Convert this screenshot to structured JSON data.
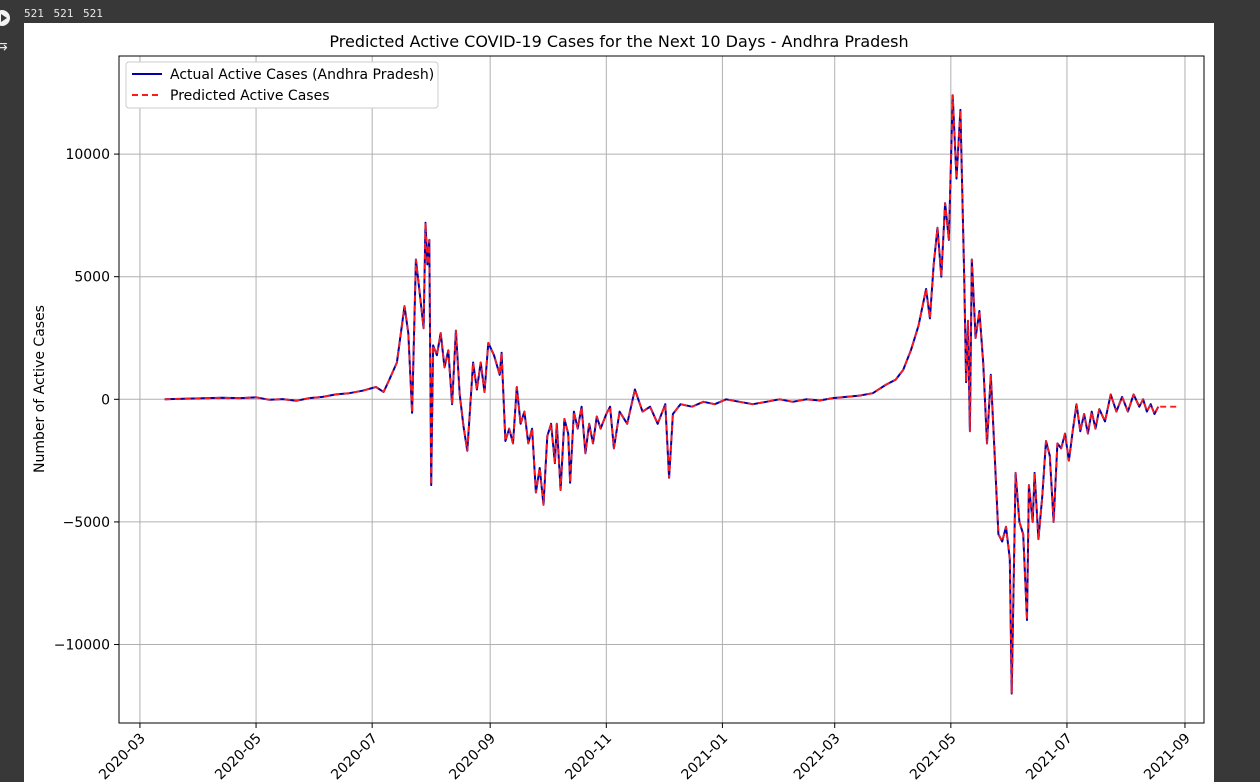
{
  "cell_output_header": "521 521 521",
  "icons": {
    "run": "run-cell-icon",
    "output": "output-toggle-icon"
  },
  "chart_data": {
    "type": "line",
    "title": "Predicted Active COVID-19 Cases for the Next 10 Days - Andhra Pradesh",
    "xlabel": "",
    "ylabel": "Number of Active Cases",
    "xlim": [
      "2020-02-19",
      "2021-09-11"
    ],
    "ylim": [
      -13200,
      14000
    ],
    "x_ticks": [
      "2020-03",
      "2020-05",
      "2020-07",
      "2020-09",
      "2020-11",
      "2021-01",
      "2021-03",
      "2021-05",
      "2021-07",
      "2021-09"
    ],
    "y_ticks": [
      10000,
      5000,
      0,
      -5000,
      -10000
    ],
    "y_tick_labels": [
      "10000",
      "5000",
      "0",
      "−5000",
      "−10000"
    ],
    "grid": true,
    "legend_position": "top-left",
    "colors": {
      "actual": "#0000aa",
      "predicted": "#ff1a1a",
      "grid": "#b0b0b0"
    },
    "series": [
      {
        "name": "Actual Active Cases (Andhra Pradesh)",
        "style": "solid",
        "points": [
          [
            "2020-03-14",
            0
          ],
          [
            "2020-03-24",
            20
          ],
          [
            "2020-04-03",
            40
          ],
          [
            "2020-04-13",
            60
          ],
          [
            "2020-04-23",
            50
          ],
          [
            "2020-05-01",
            80
          ],
          [
            "2020-05-08",
            -20
          ],
          [
            "2020-05-15",
            10
          ],
          [
            "2020-05-22",
            -60
          ],
          [
            "2020-05-29",
            50
          ],
          [
            "2020-06-05",
            100
          ],
          [
            "2020-06-12",
            200
          ],
          [
            "2020-06-19",
            250
          ],
          [
            "2020-06-26",
            350
          ],
          [
            "2020-07-03",
            500
          ],
          [
            "2020-07-07",
            300
          ],
          [
            "2020-07-10",
            800
          ],
          [
            "2020-07-14",
            1500
          ],
          [
            "2020-07-18",
            3800
          ],
          [
            "2020-07-20",
            2700
          ],
          [
            "2020-07-22",
            -550
          ],
          [
            "2020-07-24",
            5700
          ],
          [
            "2020-07-26",
            4300
          ],
          [
            "2020-07-28",
            2900
          ],
          [
            "2020-07-29",
            7200
          ],
          [
            "2020-07-30",
            5500
          ],
          [
            "2020-07-31",
            6500
          ],
          [
            "2020-08-01",
            -3500
          ],
          [
            "2020-08-02",
            2200
          ],
          [
            "2020-08-04",
            1800
          ],
          [
            "2020-08-06",
            2700
          ],
          [
            "2020-08-08",
            1300
          ],
          [
            "2020-08-10",
            2000
          ],
          [
            "2020-08-12",
            -200
          ],
          [
            "2020-08-14",
            2800
          ],
          [
            "2020-08-16",
            200
          ],
          [
            "2020-08-18",
            -1100
          ],
          [
            "2020-08-20",
            -2100
          ],
          [
            "2020-08-23",
            1500
          ],
          [
            "2020-08-25",
            400
          ],
          [
            "2020-08-27",
            1500
          ],
          [
            "2020-08-29",
            300
          ],
          [
            "2020-08-31",
            2300
          ],
          [
            "2020-09-03",
            1800
          ],
          [
            "2020-09-06",
            1000
          ],
          [
            "2020-09-07",
            1900
          ],
          [
            "2020-09-09",
            -1700
          ],
          [
            "2020-09-11",
            -1200
          ],
          [
            "2020-09-13",
            -1800
          ],
          [
            "2020-09-15",
            500
          ],
          [
            "2020-09-17",
            -1000
          ],
          [
            "2020-09-19",
            -500
          ],
          [
            "2020-09-21",
            -1800
          ],
          [
            "2020-09-23",
            -1200
          ],
          [
            "2020-09-25",
            -3800
          ],
          [
            "2020-09-27",
            -2800
          ],
          [
            "2020-09-29",
            -4300
          ],
          [
            "2020-10-01",
            -1500
          ],
          [
            "2020-10-03",
            -1000
          ],
          [
            "2020-10-05",
            -2600
          ],
          [
            "2020-10-06",
            -1000
          ],
          [
            "2020-10-08",
            -3700
          ],
          [
            "2020-10-10",
            -800
          ],
          [
            "2020-10-12",
            -1400
          ],
          [
            "2020-10-13",
            -3400
          ],
          [
            "2020-10-15",
            -500
          ],
          [
            "2020-10-17",
            -1200
          ],
          [
            "2020-10-19",
            -300
          ],
          [
            "2020-10-21",
            -2200
          ],
          [
            "2020-10-23",
            -1000
          ],
          [
            "2020-10-25",
            -1800
          ],
          [
            "2020-10-27",
            -700
          ],
          [
            "2020-10-29",
            -1200
          ],
          [
            "2020-11-01",
            -600
          ],
          [
            "2020-11-03",
            -300
          ],
          [
            "2020-11-05",
            -2000
          ],
          [
            "2020-11-08",
            -500
          ],
          [
            "2020-11-12",
            -1000
          ],
          [
            "2020-11-16",
            400
          ],
          [
            "2020-11-20",
            -500
          ],
          [
            "2020-11-24",
            -300
          ],
          [
            "2020-11-28",
            -1000
          ],
          [
            "2020-12-02",
            -200
          ],
          [
            "2020-12-04",
            -3200
          ],
          [
            "2020-12-06",
            -600
          ],
          [
            "2020-12-10",
            -200
          ],
          [
            "2020-12-16",
            -300
          ],
          [
            "2020-12-22",
            -100
          ],
          [
            "2020-12-28",
            -200
          ],
          [
            "2021-01-03",
            0
          ],
          [
            "2021-01-10",
            -100
          ],
          [
            "2021-01-17",
            -200
          ],
          [
            "2021-01-24",
            -100
          ],
          [
            "2021-01-31",
            0
          ],
          [
            "2021-02-07",
            -100
          ],
          [
            "2021-02-14",
            0
          ],
          [
            "2021-02-21",
            -50
          ],
          [
            "2021-02-28",
            50
          ],
          [
            "2021-03-07",
            100
          ],
          [
            "2021-03-14",
            150
          ],
          [
            "2021-03-21",
            250
          ],
          [
            "2021-03-28",
            600
          ],
          [
            "2021-04-02",
            800
          ],
          [
            "2021-04-06",
            1200
          ],
          [
            "2021-04-10",
            2000
          ],
          [
            "2021-04-14",
            3000
          ],
          [
            "2021-04-18",
            4500
          ],
          [
            "2021-04-20",
            3300
          ],
          [
            "2021-04-22",
            5500
          ],
          [
            "2021-04-24",
            7000
          ],
          [
            "2021-04-26",
            5000
          ],
          [
            "2021-04-28",
            8000
          ],
          [
            "2021-04-30",
            6500
          ],
          [
            "2021-05-02",
            12400
          ],
          [
            "2021-05-04",
            9000
          ],
          [
            "2021-05-06",
            11800
          ],
          [
            "2021-05-08",
            5000
          ],
          [
            "2021-05-09",
            700
          ],
          [
            "2021-05-10",
            3200
          ],
          [
            "2021-05-11",
            -1300
          ],
          [
            "2021-05-12",
            5700
          ],
          [
            "2021-05-14",
            2500
          ],
          [
            "2021-05-16",
            3600
          ],
          [
            "2021-05-18",
            1500
          ],
          [
            "2021-05-20",
            -1800
          ],
          [
            "2021-05-22",
            1000
          ],
          [
            "2021-05-24",
            -2200
          ],
          [
            "2021-05-26",
            -5500
          ],
          [
            "2021-05-28",
            -5800
          ],
          [
            "2021-05-30",
            -5200
          ],
          [
            "2021-06-01",
            -6500
          ],
          [
            "2021-06-02",
            -12000
          ],
          [
            "2021-06-04",
            -3000
          ],
          [
            "2021-06-06",
            -5000
          ],
          [
            "2021-06-08",
            -5500
          ],
          [
            "2021-06-10",
            -9000
          ],
          [
            "2021-06-11",
            -3500
          ],
          [
            "2021-06-13",
            -5000
          ],
          [
            "2021-06-14",
            -3000
          ],
          [
            "2021-06-16",
            -5700
          ],
          [
            "2021-06-18",
            -4000
          ],
          [
            "2021-06-20",
            -1700
          ],
          [
            "2021-06-22",
            -2300
          ],
          [
            "2021-06-24",
            -5000
          ],
          [
            "2021-06-26",
            -1800
          ],
          [
            "2021-06-28",
            -2000
          ],
          [
            "2021-06-30",
            -1400
          ],
          [
            "2021-07-02",
            -2500
          ],
          [
            "2021-07-04",
            -1300
          ],
          [
            "2021-07-06",
            -200
          ],
          [
            "2021-07-08",
            -1300
          ],
          [
            "2021-07-10",
            -600
          ],
          [
            "2021-07-12",
            -1400
          ],
          [
            "2021-07-14",
            -500
          ],
          [
            "2021-07-16",
            -1200
          ],
          [
            "2021-07-18",
            -400
          ],
          [
            "2021-07-21",
            -900
          ],
          [
            "2021-07-24",
            200
          ],
          [
            "2021-07-27",
            -500
          ],
          [
            "2021-07-30",
            100
          ],
          [
            "2021-08-02",
            -500
          ],
          [
            "2021-08-05",
            200
          ],
          [
            "2021-08-08",
            -300
          ],
          [
            "2021-08-10",
            0
          ],
          [
            "2021-08-12",
            -500
          ],
          [
            "2021-08-14",
            -200
          ],
          [
            "2021-08-16",
            -600
          ],
          [
            "2021-08-18",
            -300
          ]
        ]
      },
      {
        "name": "Predicted Active Cases",
        "style": "dashed",
        "follows_actual": true,
        "points": [
          [
            "2021-08-19",
            -300
          ],
          [
            "2021-08-22",
            -300
          ],
          [
            "2021-08-25",
            -300
          ],
          [
            "2021-08-28",
            -300
          ]
        ]
      }
    ]
  }
}
